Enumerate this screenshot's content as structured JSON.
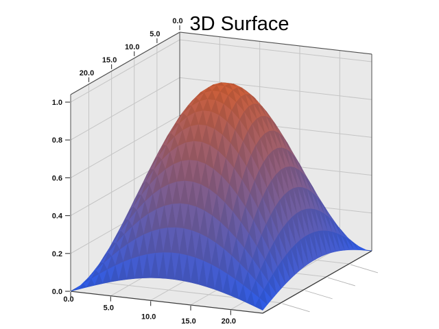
{
  "chart_data": {
    "type": "surface",
    "title": "3D Surface",
    "x_axis": {
      "min": 0,
      "max": 24,
      "tick_values": [
        0,
        5,
        10,
        15,
        20
      ],
      "tick_labels": [
        "0.0",
        "5.0",
        "10.0",
        "15.0",
        "20.0"
      ]
    },
    "y_axis": {
      "min": 0,
      "max": 24,
      "tick_values": [
        0,
        5,
        10,
        15,
        20
      ],
      "tick_labels": [
        "0.0",
        "5.0",
        "10.0",
        "15.0",
        "20.0"
      ]
    },
    "z_axis": {
      "min": 0,
      "max": 1,
      "tick_values": [
        0,
        0.2,
        0.4,
        0.6,
        0.8,
        1
      ],
      "tick_labels": [
        "0.0",
        "0.2",
        "0.4",
        "0.6",
        "0.8",
        "1.0"
      ]
    },
    "surface": {
      "formula": "z = sin(pi*x/25) * sin(pi*y/25)",
      "grid_points": 25,
      "peak_z": 1.0
    },
    "colormap": {
      "low": "#2857e0",
      "high": "#c45a34"
    },
    "colors": {
      "pane": "#e9e9e9",
      "grid": "#c4c4c4",
      "edge": "#4d4d4d",
      "tick": "#333333",
      "outer_tick": "#b0b0b0",
      "tick_label": "#111111",
      "title": "#000000",
      "background": "#ffffff"
    },
    "legend": "none",
    "grid_on": true
  }
}
